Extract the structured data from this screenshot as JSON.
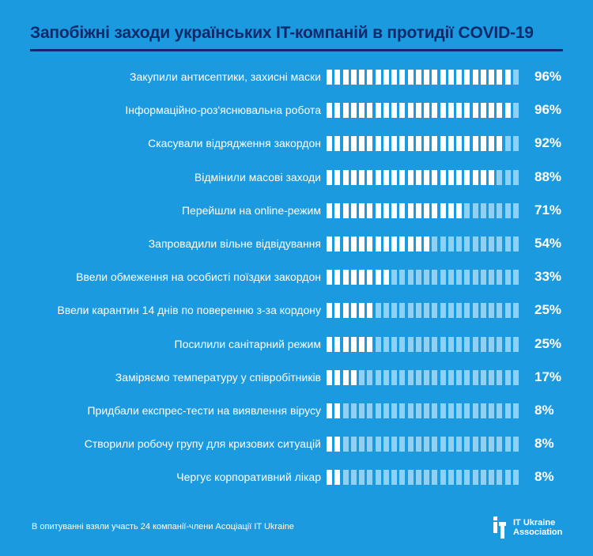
{
  "title": "Запобіжні заходи українських IT-компаній в протидії COVID-19",
  "footnote": "В опитуванні взяли участь 24 компанії-члени Асоціації IT Ukraine",
  "logo": {
    "line1": "IT Ukraine",
    "line2": "Association"
  },
  "colors": {
    "background": "#1b9ae0",
    "title": "#0d2a6b",
    "segment_filled": "#ffffff",
    "segment_empty": "#8fd0f5",
    "text": "#ffffff"
  },
  "chart_data": {
    "type": "bar",
    "orientation": "horizontal",
    "segments_per_bar": 24,
    "categories": [
      "Закупили антисептики, захисні маски",
      "Інформаційно-роз'яснювальна робота",
      "Скасували відрядження закордон",
      "Відмінили масові заходи",
      "Перейшли на online-режим",
      "Запровадили вільне відвідування",
      "Ввели обмеження на особисті поїздки закордон",
      "Ввели карантин 14 днів по поверенню з-за кордону",
      "Посилили санітарний режим",
      "Заміряємо температуру у співробітників",
      "Придбали експрес-тести на виявлення вірусу",
      "Створили робочу групу для кризових ситуацій",
      "Чергує корпоративний лікар"
    ],
    "values": [
      96,
      96,
      92,
      88,
      71,
      54,
      33,
      25,
      25,
      17,
      8,
      8,
      8
    ],
    "value_labels": [
      "96%",
      "96%",
      "92%",
      "88%",
      "71%",
      "54%",
      "33%",
      "25%",
      "25%",
      "17%",
      "8%",
      "8%",
      "8%"
    ],
    "unit": "%",
    "xlim": [
      0,
      100
    ]
  }
}
